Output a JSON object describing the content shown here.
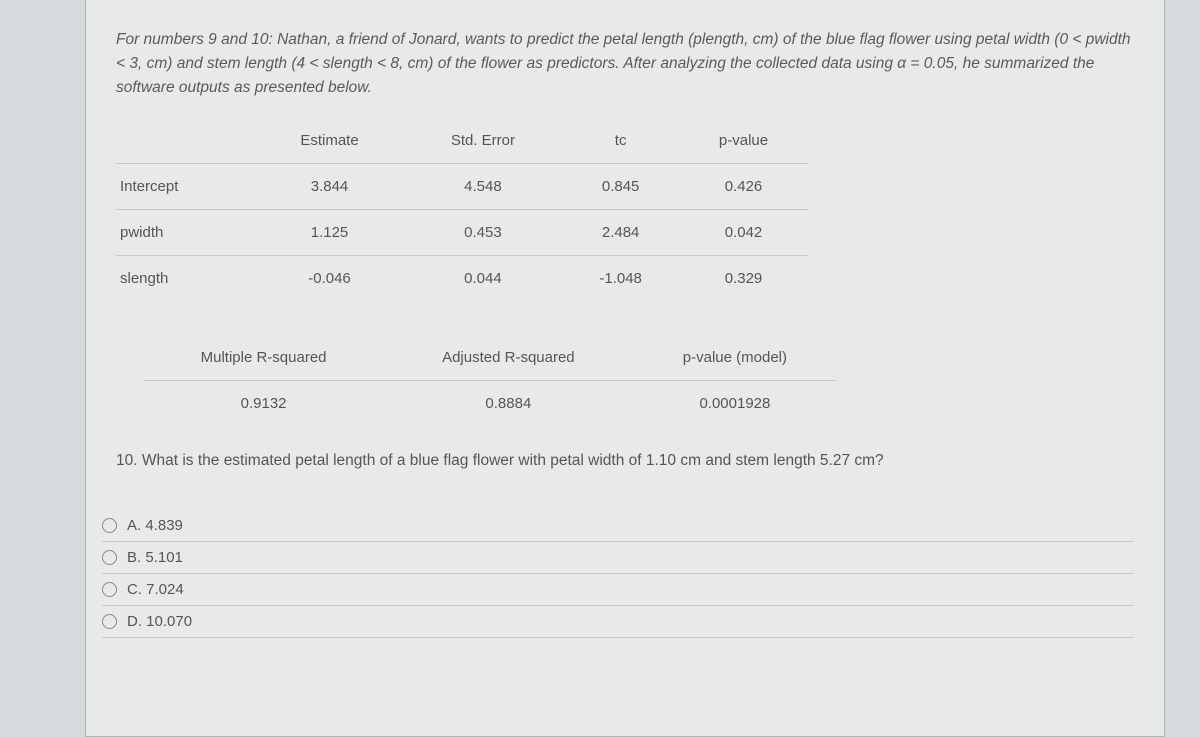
{
  "intro": "For numbers 9 and 10: Nathan, a friend of Jonard, wants to predict the petal length (plength, cm) of the blue flag flower using petal width (0 < pwidth < 3, cm) and stem length (4 < slength < 8, cm) of the flower as predictors. After analyzing the collected data using α = 0.05, he summarized the software outputs as presented below.",
  "reg_table": {
    "headers": [
      "",
      "Estimate",
      "Std. Error",
      "tc",
      "p-value"
    ],
    "rows": [
      [
        "Intercept",
        "3.844",
        "4.548",
        "0.845",
        "0.426"
      ],
      [
        "pwidth",
        "1.125",
        "0.453",
        "2.484",
        "0.042"
      ],
      [
        "slength",
        "-0.046",
        "0.044",
        "-1.048",
        "0.329"
      ]
    ]
  },
  "stats_table": {
    "headers": [
      "Multiple R-squared",
      "Adjusted R-squared",
      "p-value (model)"
    ],
    "rows": [
      [
        "0.9132",
        "0.8884",
        "0.0001928"
      ]
    ]
  },
  "question": "10. What is the estimated petal length of a blue flag flower with petal width of 1.10 cm and stem length 5.27 cm?",
  "options": [
    {
      "label": "A. 4.839"
    },
    {
      "label": "B. 5.101"
    },
    {
      "label": "C. 7.024"
    },
    {
      "label": "D. 10.070"
    }
  ]
}
